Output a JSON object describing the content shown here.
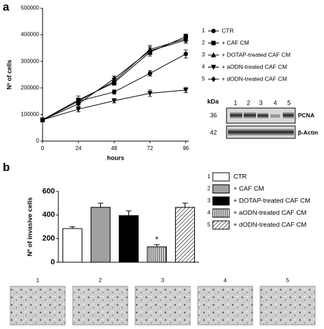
{
  "panel_labels": [
    "a",
    "b"
  ],
  "chart_data": [
    {
      "type": "line",
      "xlabel": "hours",
      "ylabel": "Nº of cells",
      "x": [
        0,
        24,
        48,
        72,
        96
      ],
      "xlim": [
        0,
        98
      ],
      "xticks": [
        0,
        24,
        48,
        72,
        96
      ],
      "ylim": [
        0,
        500000
      ],
      "yticks": [
        0,
        100000,
        200000,
        300000,
        400000,
        500000
      ],
      "legend_numbers": [
        "1",
        "2",
        "3",
        "4",
        "5"
      ],
      "series": [
        {
          "name": "CTR",
          "color": "#000000",
          "marker": "circle",
          "values": [
            80000,
            150000,
            185000,
            255000,
            328000
          ],
          "errors": [
            5000,
            12000,
            8000,
            10000,
            15000
          ]
        },
        {
          "name": "+ CAF CM",
          "color": "#000000",
          "marker": "square",
          "values": [
            80000,
            155000,
            220000,
            335000,
            393000
          ],
          "errors": [
            5000,
            15000,
            10000,
            15000,
            10000
          ]
        },
        {
          "name": "+ DOTAP-treated CAF CM",
          "color": "#000000",
          "marker": "triangle-up",
          "values": [
            80000,
            150000,
            225000,
            345000,
            385000
          ],
          "errors": [
            5000,
            12000,
            12000,
            15000,
            12000
          ]
        },
        {
          "name": "+ aODN-treated CAF CM",
          "color": "#000000",
          "marker": "triangle-down",
          "values": [
            80000,
            120000,
            152000,
            180000,
            192000
          ],
          "errors": [
            5000,
            10000,
            8000,
            12000,
            10000
          ]
        },
        {
          "name": "+ dODN-treated CAF CM",
          "color": "#000000",
          "marker": "diamond",
          "values": [
            80000,
            140000,
            235000,
            340000,
            380000
          ],
          "errors": [
            5000,
            12000,
            10000,
            15000,
            12000
          ]
        }
      ]
    },
    {
      "type": "bar",
      "ylabel": "Nº of invasive cells",
      "categories": [
        null,
        null,
        null,
        null,
        null
      ],
      "values": [
        285,
        465,
        395,
        130,
        465
      ],
      "errors": [
        15,
        35,
        40,
        18,
        35
      ],
      "colors": [
        "#ffffff",
        "#a0a0a0",
        "#000000",
        "#ffffff",
        "#ffffff"
      ],
      "patterns": [
        null,
        null,
        null,
        "vertical",
        "diagonal"
      ],
      "ylim": [
        0,
        600
      ],
      "yticks": [
        0,
        200,
        400,
        600
      ],
      "legend_numbers": [
        "1",
        "2",
        "3",
        "4",
        "5"
      ],
      "legend": [
        "CTR",
        "+ CAF CM",
        "+ DOTAP-treated CAF CM",
        "+ aODN-treated CAF CM",
        "+ dODN-treated CAF CM"
      ],
      "annotation": "*"
    }
  ],
  "blot": {
    "unit": "kDa",
    "lanes": [
      "1",
      "2",
      "3",
      "4",
      "5"
    ],
    "sizes": [
      "36",
      "42"
    ],
    "proteins": [
      "PCNA",
      "β-Actin"
    ]
  },
  "micrographs": [
    "1",
    "2",
    "3",
    "4",
    "5"
  ]
}
